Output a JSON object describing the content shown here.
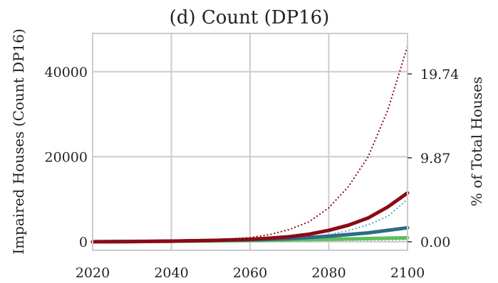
{
  "chart_data": {
    "type": "line",
    "title": "(d) Count (DP16)",
    "xlabel": "",
    "ylabel": "Impaired Houses (Count DP16)",
    "y2label": "% of Total Houses",
    "xlim": [
      2020,
      2100
    ],
    "ylim": [
      -2000,
      49000
    ],
    "xticks": [
      2020,
      2040,
      2060,
      2080,
      2100
    ],
    "yticks": [
      0,
      20000,
      40000
    ],
    "y2ticks": [
      {
        "value": 0,
        "label": "0.00"
      },
      {
        "value": 19740,
        "label": "9.87"
      },
      {
        "value": 39480,
        "label": "19.74"
      }
    ],
    "grid": true,
    "legend": "none",
    "series": [
      {
        "color": "#8b0b14",
        "style": "dotted",
        "x": [
          2020,
          2030,
          2040,
          2050,
          2060,
          2065,
          2070,
          2075,
          2080,
          2085,
          2090,
          2095,
          2100
        ],
        "y": [
          0,
          50,
          150,
          350,
          1000,
          1700,
          2900,
          4700,
          8000,
          13000,
          20000,
          31000,
          46000
        ]
      },
      {
        "color": "#8b0b14",
        "style": "solid",
        "x": [
          2020,
          2030,
          2040,
          2050,
          2060,
          2065,
          2070,
          2075,
          2080,
          2085,
          2090,
          2095,
          2100
        ],
        "y": [
          0,
          50,
          150,
          300,
          600,
          850,
          1200,
          1800,
          2700,
          3900,
          5600,
          8200,
          11500
        ]
      },
      {
        "color": "#5ba3c9",
        "style": "dotted",
        "x": [
          2020,
          2040,
          2060,
          2070,
          2080,
          2085,
          2090,
          2095,
          2100
        ],
        "y": [
          0,
          100,
          300,
          650,
          1700,
          2600,
          4000,
          6000,
          10000
        ]
      },
      {
        "color": "#2e6b86",
        "style": "solid",
        "x": [
          2020,
          2040,
          2060,
          2070,
          2080,
          2090,
          2100
        ],
        "y": [
          0,
          150,
          450,
          750,
          1300,
          2100,
          3300
        ]
      },
      {
        "color": "#5cc05c",
        "style": "solid",
        "x": [
          2020,
          2040,
          2060,
          2080,
          2100
        ],
        "y": [
          0,
          120,
          300,
          600,
          950
        ]
      },
      {
        "color": "#9a9a9a",
        "style": "dotted",
        "x": [
          2020,
          2040,
          2060,
          2080,
          2100
        ],
        "y": [
          0,
          60,
          150,
          320,
          450
        ]
      }
    ]
  }
}
